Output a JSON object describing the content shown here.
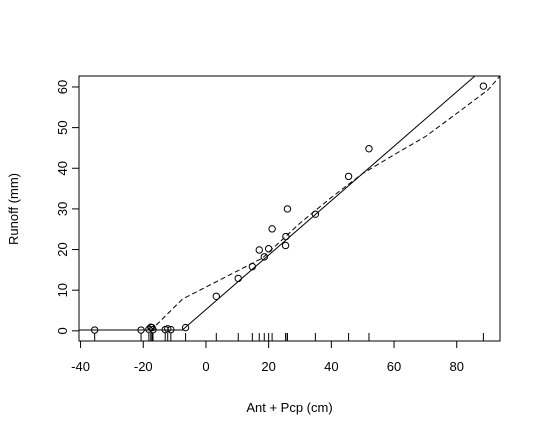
{
  "chart_data": {
    "type": "scatter",
    "title": "",
    "xlabel": "Ant + Pcp (cm)",
    "ylabel": "Runoff (mm)",
    "xlim": [
      -40.5,
      93.8
    ],
    "ylim": [
      -2.5,
      62.7
    ],
    "xticks": [
      -40,
      -20,
      0,
      20,
      40,
      60,
      80
    ],
    "xtick_labels": [
      "-40",
      "-20",
      "0",
      "20",
      "40",
      "60",
      "80"
    ],
    "yticks": [
      0,
      10,
      20,
      30,
      40,
      50,
      60
    ],
    "ytick_labels": [
      "0",
      "10",
      "20",
      "30",
      "40",
      "50",
      "60"
    ],
    "grid": false,
    "legend": "none",
    "points": [
      {
        "x": -35.5,
        "y": 0.2
      },
      {
        "x": -20.7,
        "y": 0.2
      },
      {
        "x": -18.2,
        "y": 0.4
      },
      {
        "x": -17.6,
        "y": 0.9
      },
      {
        "x": -17.2,
        "y": 0.8
      },
      {
        "x": -16.9,
        "y": 0.3
      },
      {
        "x": -13.0,
        "y": 0.3
      },
      {
        "x": -12.2,
        "y": 0.5
      },
      {
        "x": -11.2,
        "y": 0.3
      },
      {
        "x": -6.5,
        "y": 0.8
      },
      {
        "x": 3.3,
        "y": 8.5
      },
      {
        "x": 10.3,
        "y": 12.9
      },
      {
        "x": 14.8,
        "y": 15.8
      },
      {
        "x": 17.0,
        "y": 19.9
      },
      {
        "x": 18.6,
        "y": 18.2
      },
      {
        "x": 20.0,
        "y": 20.2
      },
      {
        "x": 21.1,
        "y": 25.1
      },
      {
        "x": 25.4,
        "y": 21.0
      },
      {
        "x": 25.5,
        "y": 23.2
      },
      {
        "x": 26.0,
        "y": 30.0
      },
      {
        "x": 34.9,
        "y": 28.7
      },
      {
        "x": 45.5,
        "y": 38.0
      },
      {
        "x": 52.0,
        "y": 44.8
      },
      {
        "x": 88.5,
        "y": 60.2
      }
    ],
    "rug_x": [
      -35.5,
      -20.7,
      -18.2,
      -17.6,
      -17.2,
      -16.9,
      -13.0,
      -12.2,
      -11.2,
      -6.5,
      3.3,
      10.3,
      14.8,
      17.0,
      18.6,
      20.0,
      21.1,
      25.4,
      25.5,
      26.0,
      34.9,
      45.5,
      52.0,
      88.5
    ],
    "series": [
      {
        "style": "solid",
        "x": [
          -40.5,
          -18.4,
          -7.5,
          85.8
        ],
        "y": [
          0.2,
          0.2,
          0.2,
          62.7
        ]
      },
      {
        "style": "dashed",
        "x": [
          -17.7,
          -7.5,
          18.0,
          30.0,
          40.0,
          50.0,
          60.0,
          70.0,
          80.0,
          90.0,
          93.8
        ],
        "y": [
          0.0,
          7.8,
          17.9,
          26.5,
          32.8,
          38.7,
          43.3,
          47.8,
          53.5,
          59.3,
          62.7
        ]
      }
    ]
  }
}
